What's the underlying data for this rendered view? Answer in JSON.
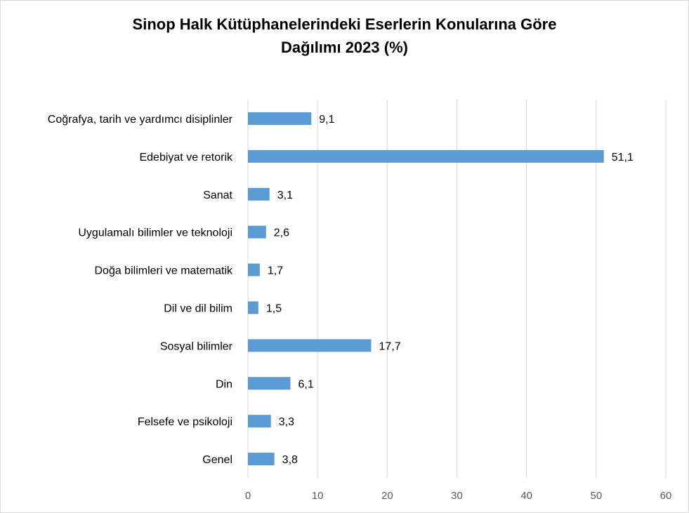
{
  "chart_data": {
    "type": "bar",
    "orientation": "horizontal",
    "title_line1": "Sinop Halk Kütüphanelerindeki Eserlerin Konularına Göre",
    "title_line2": "Dağılımı 2023 (%)",
    "categories": [
      "Coğrafya, tarih ve yardımcı disiplinler",
      "Edebiyat ve retorik",
      "Sanat",
      "Uygulamalı bilimler ve teknoloji",
      "Doğa bilimleri ve matematik",
      "Dil ve dil bilim",
      "Sosyal bilimler",
      "Din",
      "Felsefe ve psikoloji",
      "Genel"
    ],
    "values": [
      9.1,
      51.1,
      3.1,
      2.6,
      1.7,
      1.5,
      17.7,
      6.1,
      3.3,
      3.8
    ],
    "value_labels": [
      "9,1",
      "51,1",
      "3,1",
      "2,6",
      "1,7",
      "1,5",
      "17,7",
      "6,1",
      "3,3",
      "3,8"
    ],
    "xlim": [
      0,
      60
    ],
    "x_ticks": [
      0,
      10,
      20,
      30,
      40,
      50,
      60
    ],
    "grid": "vertical",
    "legend": "none",
    "bar_color": "#5b9bd5",
    "grid_color": "#d9d9d9"
  }
}
